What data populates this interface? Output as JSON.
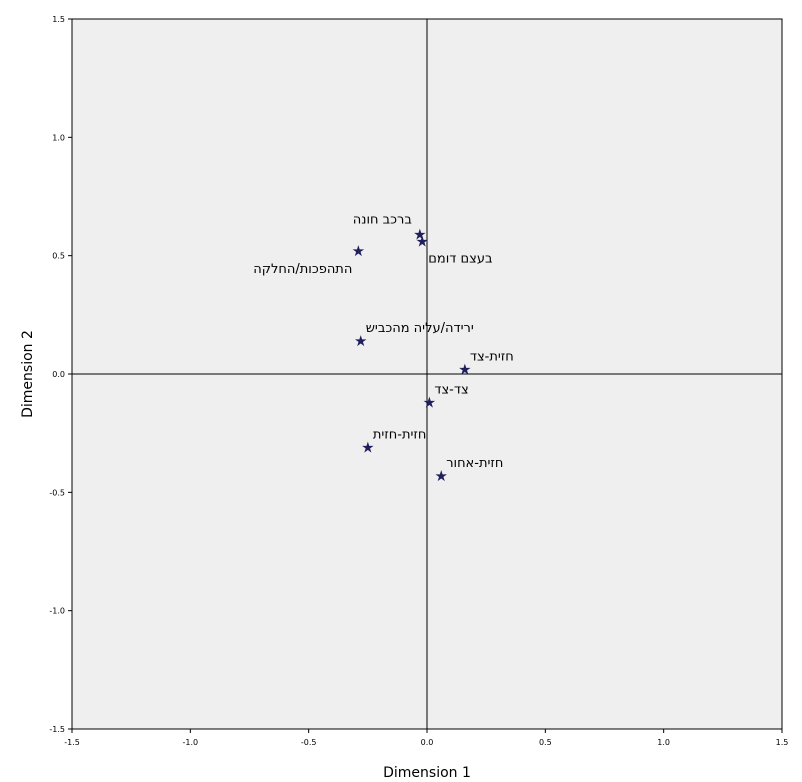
{
  "chart_data": {
    "type": "scatter",
    "title": "",
    "xlabel": "Dimension 1",
    "ylabel": "Dimension 2",
    "xlim": [
      -1.5,
      1.5
    ],
    "ylim": [
      -1.5,
      1.5
    ],
    "xticks": [
      -1.5,
      -1.0,
      -0.5,
      0.0,
      0.5,
      1.0,
      1.5
    ],
    "yticks": [
      -1.5,
      -1.0,
      -0.5,
      0.0,
      0.5,
      1.0,
      1.5
    ],
    "xtick_labels": [
      "-1.5",
      "-1.0",
      "-0.5",
      "0.0",
      "0.5",
      "1.0",
      "1.5"
    ],
    "ytick_labels": [
      "-1.5",
      "-1.0",
      "-0.5",
      "0.0",
      "0.5",
      "1.0",
      "1.5"
    ],
    "marker": "★",
    "grid": false,
    "reference_lines": {
      "x": 0,
      "y": 0
    },
    "points": [
      {
        "label": "ברכב חונה",
        "x": -0.03,
        "y": 0.59,
        "label_pos": "above-left"
      },
      {
        "label": "בעצם דומם",
        "x": -0.02,
        "y": 0.56,
        "label_pos": "below-right"
      },
      {
        "label": "התהפכות/החלקה",
        "x": -0.29,
        "y": 0.52,
        "label_pos": "below-left"
      },
      {
        "label": "ירידה/עליה מהכביש",
        "x": -0.28,
        "y": 0.14,
        "label_pos": "above-right"
      },
      {
        "label": "חזית-צד",
        "x": 0.16,
        "y": 0.02,
        "label_pos": "above-right"
      },
      {
        "label": "צד-צד",
        "x": 0.01,
        "y": -0.12,
        "label_pos": "above-right"
      },
      {
        "label": "חזית-חזית",
        "x": -0.25,
        "y": -0.31,
        "label_pos": "above-right"
      },
      {
        "label": "חזית-אחור",
        "x": 0.06,
        "y": -0.43,
        "label_pos": "above-right"
      }
    ],
    "colors": {
      "background": "#efefef",
      "marker": "#1f1f5c",
      "axis": "#000000"
    }
  }
}
